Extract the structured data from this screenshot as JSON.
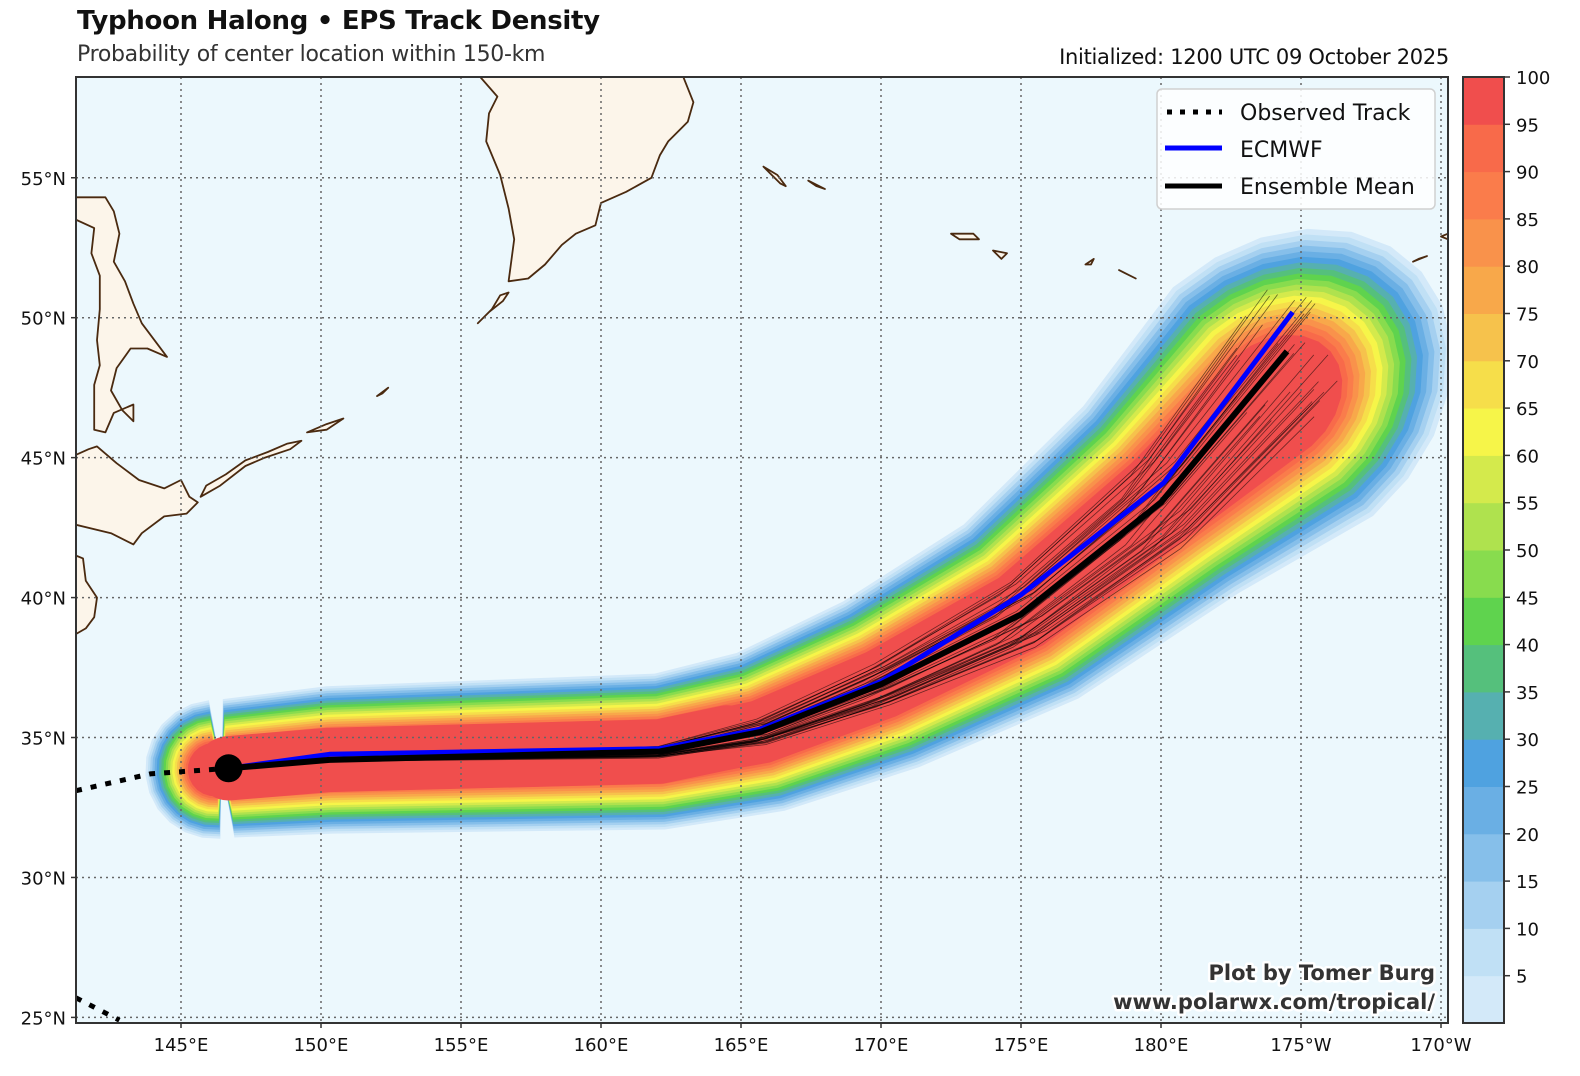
{
  "header": {
    "title": "Typhoon Halong • EPS Track Density",
    "subtitle": "Probability of center location within 150-km",
    "initialized": "Initialized: 1200 UTC 09 October 2025"
  },
  "legend": {
    "items": [
      {
        "label": "Observed Track",
        "style": "dotted",
        "color": "#000000"
      },
      {
        "label": "ECMWF",
        "style": "solid",
        "color": "#0000ff"
      },
      {
        "label": "Ensemble Mean",
        "style": "solid",
        "color": "#000000"
      }
    ]
  },
  "credit": {
    "line1": "Plot by Tomer Burg",
    "line2": "www.polarwx.com/tropical/"
  },
  "colors": {
    "ocean": "#ecf8fd",
    "land": "#fcf5ea",
    "coast": "#4a2a10",
    "grid": "#666666"
  },
  "chart_data": {
    "type": "heatmap",
    "title": "Typhoon Halong • EPS Track Density",
    "subtitle": "Probability of center location within 150-km",
    "map_extent": {
      "lon": [
        141.25,
        190.25
      ],
      "lat": [
        24.8,
        58.6
      ]
    },
    "x_ticks": [
      {
        "lon": 145,
        "label": "145°E"
      },
      {
        "lon": 150,
        "label": "150°E"
      },
      {
        "lon": 155,
        "label": "155°E"
      },
      {
        "lon": 160,
        "label": "160°E"
      },
      {
        "lon": 165,
        "label": "165°E"
      },
      {
        "lon": 170,
        "label": "170°E"
      },
      {
        "lon": 175,
        "label": "175°E"
      },
      {
        "lon": 180,
        "label": "180°E"
      },
      {
        "lon": 185,
        "label": "175°W"
      },
      {
        "lon": 190,
        "label": "170°W"
      }
    ],
    "y_ticks": [
      {
        "lat": 25,
        "label": "25°N"
      },
      {
        "lat": 30,
        "label": "30°N"
      },
      {
        "lat": 35,
        "label": "35°N"
      },
      {
        "lat": 40,
        "label": "40°N"
      },
      {
        "lat": 45,
        "label": "45°N"
      },
      {
        "lat": 50,
        "label": "50°N"
      },
      {
        "lat": 55,
        "label": "55°N"
      }
    ],
    "grid": true,
    "colorbar": {
      "levels": [
        0,
        5,
        10,
        15,
        20,
        25,
        30,
        35,
        40,
        45,
        50,
        55,
        60,
        65,
        70,
        75,
        80,
        85,
        90,
        95,
        100
      ],
      "tick_labels": [
        "5",
        "10",
        "15",
        "20",
        "25",
        "30",
        "35",
        "40",
        "45",
        "50",
        "55",
        "60",
        "65",
        "70",
        "75",
        "80",
        "85",
        "90",
        "95",
        "100"
      ],
      "colors": [
        "#d3e9f9",
        "#c0e0f5",
        "#a5d0f0",
        "#86bfea",
        "#6aafe4",
        "#4fa2e0",
        "#56b0b0",
        "#55c07c",
        "#5fd34e",
        "#88dc4e",
        "#afe24e",
        "#d4ea4c",
        "#f6f549",
        "#f6de4a",
        "#f6c24c",
        "#f8a84a",
        "#f9924b",
        "#fa7c4b",
        "#f86a4a",
        "#f04e4d"
      ]
    },
    "series": [
      {
        "name": "Observed Track",
        "points": [
          [
            141.25,
            33.1
          ],
          [
            143.9,
            33.7
          ],
          [
            146.7,
            33.9
          ]
        ],
        "extra_segment": [
          [
            141.25,
            25.7
          ],
          [
            142.8,
            24.9
          ]
        ]
      },
      {
        "name": "ECMWF",
        "points": [
          [
            146.7,
            33.9
          ],
          [
            150.3,
            34.4
          ],
          [
            162.1,
            34.6
          ],
          [
            165.7,
            35.3
          ],
          [
            170.0,
            37.0
          ],
          [
            175.0,
            40.1
          ],
          [
            180.1,
            44.1
          ],
          [
            184.7,
            50.2
          ]
        ]
      },
      {
        "name": "Ensemble Mean",
        "points": [
          [
            146.7,
            33.9
          ],
          [
            150.3,
            34.2
          ],
          [
            162.1,
            34.5
          ],
          [
            165.7,
            35.2
          ],
          [
            170.0,
            36.9
          ],
          [
            175.0,
            39.4
          ],
          [
            180.0,
            43.4
          ],
          [
            184.5,
            48.8
          ]
        ]
      }
    ],
    "current_position": {
      "lon": 146.7,
      "lat": 33.9
    },
    "density_centerline": [
      [
        146.7,
        33.9
      ],
      [
        150.3,
        34.2
      ],
      [
        162.1,
        34.5
      ],
      [
        165.7,
        35.2
      ],
      [
        170.0,
        36.9
      ],
      [
        175.0,
        39.5
      ],
      [
        180.0,
        43.5
      ],
      [
        184.0,
        47.0
      ]
    ],
    "density_halfwidth_deg": [
      1.6,
      1.7,
      1.8,
      1.9,
      2.1,
      2.4,
      2.8,
      3.5
    ]
  }
}
